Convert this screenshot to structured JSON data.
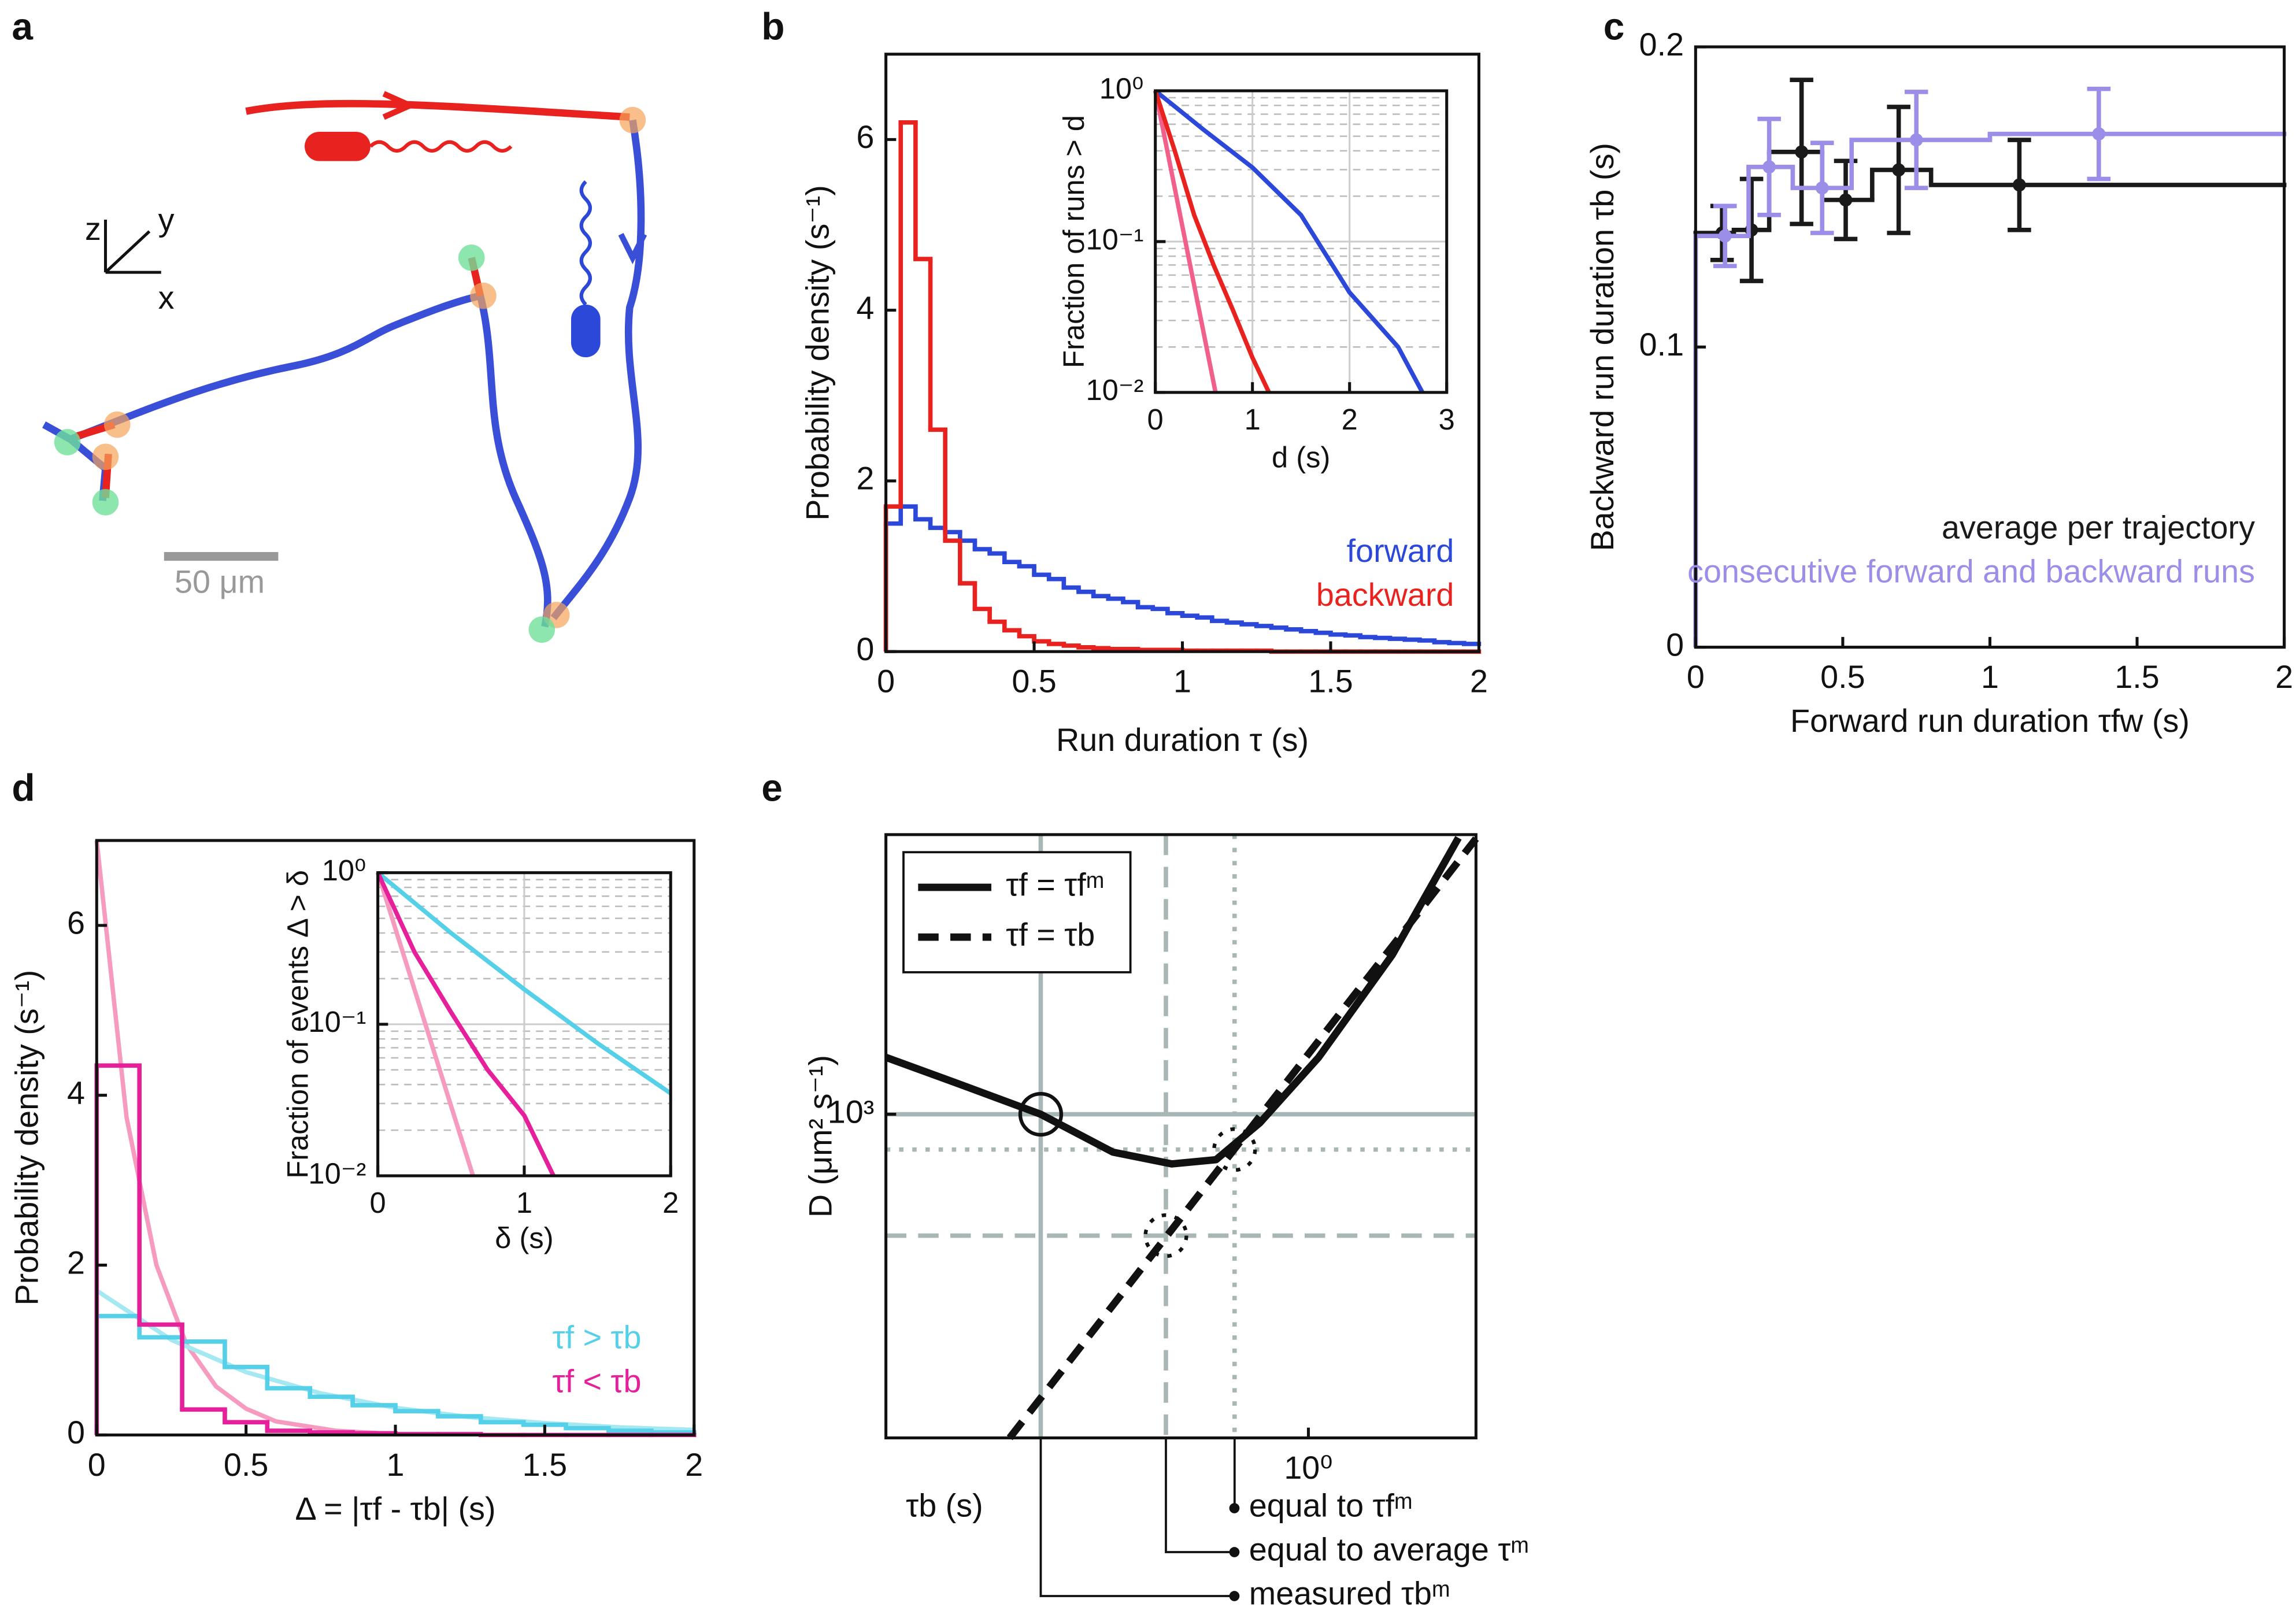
{
  "panel_a": {
    "label": "a",
    "axes": [
      "z",
      "y",
      "x"
    ],
    "scale_bar": "50 μm"
  },
  "chart_data": [
    {
      "type": "histogram",
      "label": "b",
      "xlabel": "Run duration τ (s)",
      "ylabel": "Probability density (s⁻¹)",
      "xlim": [
        0,
        2
      ],
      "ylim": [
        0,
        7
      ],
      "xticks": [
        0,
        0.5,
        1,
        1.5,
        2
      ],
      "yticks": [
        0,
        2,
        4,
        6
      ],
      "legend": "lower right",
      "bins": [
        0,
        0.05,
        0.1,
        0.15,
        0.2,
        0.25,
        0.3,
        0.35,
        0.4,
        0.45,
        0.5,
        0.55,
        0.6,
        0.65,
        0.7,
        0.75,
        0.8,
        0.85,
        0.9,
        0.95,
        1,
        1.05,
        1.1,
        1.15,
        1.2,
        1.25,
        1.3,
        1.35,
        1.4,
        1.45,
        1.5,
        1.55,
        1.6,
        1.65,
        1.7,
        1.75,
        1.8,
        1.85,
        1.9,
        1.95,
        2
      ],
      "series": [
        {
          "name": "forward",
          "color": "#2b48d8",
          "values": [
            1.5,
            1.7,
            1.55,
            1.45,
            1.4,
            1.3,
            1.2,
            1.15,
            1.05,
            1.0,
            0.9,
            0.85,
            0.75,
            0.7,
            0.65,
            0.62,
            0.58,
            0.52,
            0.5,
            0.45,
            0.42,
            0.4,
            0.36,
            0.34,
            0.32,
            0.3,
            0.28,
            0.26,
            0.24,
            0.22,
            0.2,
            0.19,
            0.17,
            0.16,
            0.15,
            0.14,
            0.13,
            0.11,
            0.1,
            0.09
          ]
        },
        {
          "name": "backward",
          "color": "#e8231f",
          "values": [
            1.7,
            6.2,
            4.6,
            2.6,
            1.3,
            0.8,
            0.5,
            0.35,
            0.25,
            0.18,
            0.12,
            0.09,
            0.07,
            0.05,
            0.04,
            0.03,
            0.03,
            0.02,
            0.02,
            0.02,
            0.01,
            0.01,
            0.01,
            0.01,
            0.01,
            0.01,
            0,
            0,
            0,
            0,
            0,
            0,
            0,
            0,
            0,
            0,
            0,
            0,
            0,
            0
          ]
        }
      ]
    },
    {
      "type": "line",
      "xlabel": "d (s)",
      "ylabel": "Fraction of runs > d",
      "yscale": "log",
      "grid": true,
      "minor_grid": true,
      "xlim": [
        0,
        3
      ],
      "ylim": [
        0.01,
        1
      ],
      "xticks": [
        0,
        1,
        2,
        3
      ],
      "yticks": [
        {
          "value": 0.01,
          "label": "10⁻²"
        },
        {
          "value": 0.1,
          "label": "10⁻¹"
        },
        {
          "value": 1,
          "label": "10⁰"
        }
      ],
      "series": [
        {
          "color": "#2b48d8",
          "x": [
            0,
            0.5,
            1,
            1.5,
            2,
            2.5,
            2.75
          ],
          "values": [
            1,
            0.55,
            0.31,
            0.15,
            0.046,
            0.02,
            0.01
          ]
        },
        {
          "color": "#f0608a",
          "x": [
            0,
            0.62
          ],
          "values": [
            1,
            0.01
          ]
        },
        {
          "color": "#e8231f",
          "x": [
            0,
            0.2,
            0.4,
            0.6,
            0.8,
            1,
            1.17
          ],
          "values": [
            1,
            0.4,
            0.15,
            0.07,
            0.035,
            0.017,
            0.01
          ]
        }
      ]
    },
    {
      "type": "step_errorbar",
      "label": "c",
      "xlabel": "Forward run duration τfw (s)",
      "ylabel": "Backward run duration τb (s)",
      "xlim": [
        0,
        2
      ],
      "ylim": [
        0,
        0.2
      ],
      "xticks": [
        0,
        0.5,
        1,
        1.5,
        2
      ],
      "yticks": [
        0,
        0.1,
        0.2
      ],
      "legend": "lower right",
      "series": [
        {
          "name": "average per trajectory",
          "color": "#1a1a1a",
          "bins": [
            0,
            0.13,
            0.25,
            0.43,
            0.6,
            0.8,
            2
          ],
          "x": [
            0.09,
            0.19,
            0.36,
            0.51,
            0.69,
            1.1
          ],
          "values": [
            0.138,
            0.139,
            0.165,
            0.149,
            0.159,
            0.154
          ],
          "errors": [
            0.009,
            0.017,
            0.024,
            0.013,
            0.021,
            0.015
          ]
        },
        {
          "name": "consecutive forward and backward runs",
          "color": "#9b8ee8",
          "bins": [
            0,
            0.18,
            0.33,
            0.53,
            1.0,
            2
          ],
          "x": [
            0.1,
            0.25,
            0.43,
            0.75,
            1.37
          ],
          "values": [
            0.137,
            0.16,
            0.153,
            0.169,
            0.171
          ],
          "errors": [
            0.01,
            0.016,
            0.015,
            0.016,
            0.015
          ]
        }
      ]
    },
    {
      "type": "histogram",
      "label": "d",
      "xlabel": "Δ = |τf - τb| (s)",
      "ylabel": "Probability density (s⁻¹)",
      "xlim": [
        0,
        2
      ],
      "ylim": [
        0,
        7
      ],
      "xticks": [
        0,
        0.5,
        1,
        1.5,
        2
      ],
      "yticks": [
        0,
        2,
        4,
        6
      ],
      "legend": "lower right",
      "bins": [
        0,
        0.143,
        0.286,
        0.429,
        0.571,
        0.714,
        0.857,
        1.0,
        1.143,
        1.286,
        1.429,
        1.571,
        1.714,
        1.857,
        2.0
      ],
      "series": [
        {
          "color": "#f79ac0",
          "x": [
            0,
            0.1,
            0.2,
            0.3,
            0.4,
            0.5,
            0.6,
            0.8,
            1.0
          ],
          "values": [
            7,
            3.74,
            2.0,
            1.07,
            0.57,
            0.31,
            0.16,
            0.05,
            0.01
          ]
        },
        {
          "color": "#a4e8f2",
          "x": [
            0,
            0.25,
            0.5,
            0.75,
            1,
            1.25,
            1.5,
            1.75,
            2
          ],
          "values": [
            1.7,
            1.12,
            0.74,
            0.49,
            0.32,
            0.21,
            0.14,
            0.09,
            0.06
          ]
        },
        {
          "name": "τf > τb",
          "color": "#55d0e8",
          "values": [
            1.4,
            1.15,
            1.1,
            0.8,
            0.55,
            0.45,
            0.35,
            0.28,
            0.22,
            0.15,
            0.12,
            0.08,
            0.05,
            0.03
          ]
        },
        {
          "name": "τf < τb",
          "color": "#e61f9b",
          "values": [
            4.35,
            1.3,
            0.3,
            0.15,
            0.05,
            0.03,
            0.02,
            0.01,
            0.01,
            0,
            0,
            0,
            0,
            0
          ]
        }
      ]
    },
    {
      "type": "line",
      "xlabel": "δ (s)",
      "ylabel": "Fraction of events Δ > δ",
      "yscale": "log",
      "grid": true,
      "minor_grid": true,
      "xlim": [
        0,
        2
      ],
      "ylim": [
        0.01,
        1
      ],
      "xticks": [
        0,
        1,
        2
      ],
      "yticks": [
        {
          "value": 0.01,
          "label": "10⁻²"
        },
        {
          "value": 0.1,
          "label": "10⁻¹"
        },
        {
          "value": 1,
          "label": "10⁰"
        }
      ],
      "series": [
        {
          "color": "#55d0e8",
          "x": [
            0,
            0.5,
            1,
            1.5,
            2
          ],
          "values": [
            1,
            0.4,
            0.17,
            0.075,
            0.035
          ]
        },
        {
          "color": "#f79ac0",
          "x": [
            0,
            0.65
          ],
          "values": [
            1,
            0.01
          ]
        },
        {
          "color": "#e61f9b",
          "x": [
            0,
            0.25,
            0.5,
            0.75,
            1,
            1.2
          ],
          "values": [
            1,
            0.3,
            0.12,
            0.05,
            0.025,
            0.01
          ]
        }
      ]
    },
    {
      "type": "line",
      "label": "e",
      "xlabel": "τb (s)",
      "ylabel": "D (μm² s⁻¹)",
      "xscale": "log",
      "yscale": "log",
      "legend": "upper left",
      "xlim": [
        0.11,
        2.4
      ],
      "ylim": [
        270,
        3100
      ],
      "xticks": [
        {
          "value": 1,
          "label": "10⁰"
        }
      ],
      "yticks": [
        {
          "value": 1000,
          "label": "10³"
        }
      ],
      "vlines": [
        {
          "value": 0.68,
          "style": "dotted",
          "label": "equal to τfᵐ"
        },
        {
          "value": 0.475,
          "style": "dashed",
          "label": "equal to average τᵐ"
        },
        {
          "value": 0.247,
          "style": "solid",
          "label": "measured τbᵐ"
        }
      ],
      "hlines": [
        {
          "value": 1000,
          "style": "solid"
        },
        {
          "value": 867,
          "style": "dotted"
        },
        {
          "value": 612,
          "style": "dashed"
        }
      ],
      "markers": [
        {
          "x": 0.247,
          "y": 1000,
          "style": "solid"
        },
        {
          "x": 0.68,
          "y": 867,
          "style": "dotted"
        },
        {
          "x": 0.475,
          "y": 612,
          "style": "dotted"
        }
      ],
      "series": [
        {
          "name": "τf = τfᵐ",
          "color": "#111111",
          "linestyle": "solid",
          "x": [
            0.11,
            0.167,
            0.247,
            0.36,
            0.49,
            0.617,
            0.776,
            1.055,
            1.55,
            2.19
          ],
          "values": [
            1259,
            1119,
            1000,
            858,
            818,
            832,
            966,
            1259,
            1906,
            3060
          ]
        },
        {
          "name": "τf = τb",
          "color": "#111111",
          "linestyle": "dashed",
          "x": [
            0.21,
            2.4
          ],
          "values": [
            270,
            3050
          ]
        }
      ]
    }
  ]
}
